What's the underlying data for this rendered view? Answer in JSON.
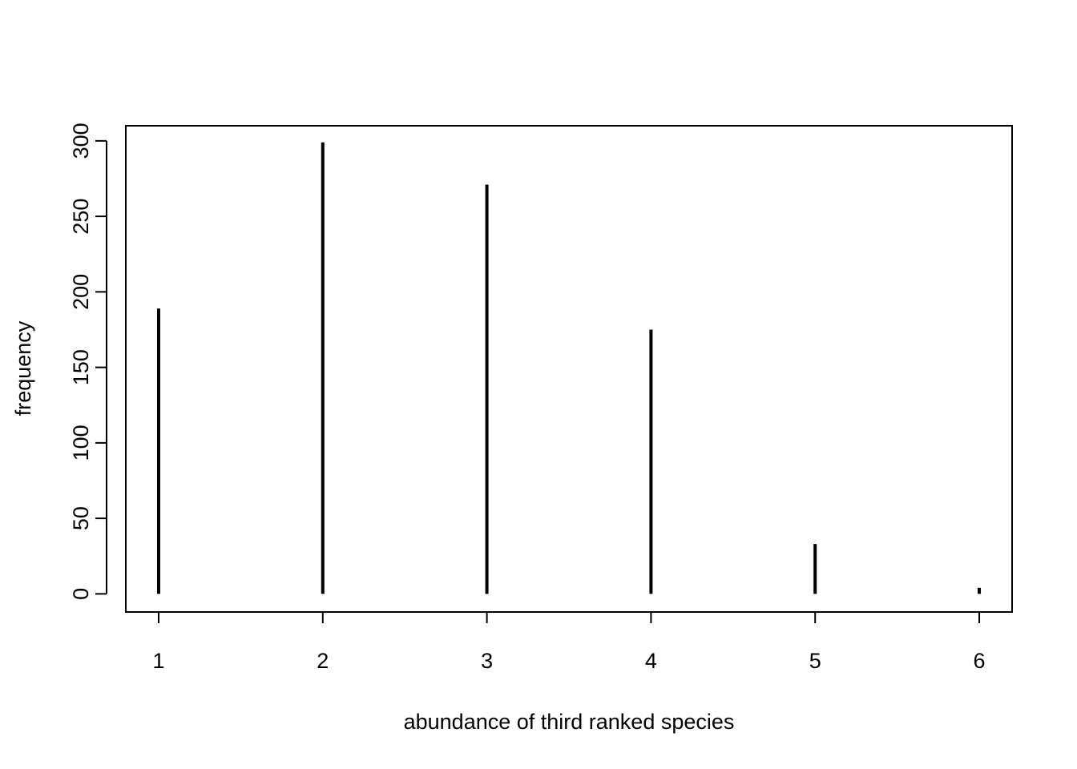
{
  "chart_data": {
    "type": "bar",
    "style": "histogram-lines",
    "x": [
      1,
      2,
      3,
      4,
      5,
      6
    ],
    "values": [
      189,
      299,
      271,
      175,
      33,
      4
    ],
    "xlabel": "abundance of third ranked species",
    "ylabel": "frequency",
    "xlim": [
      0.8,
      6.2
    ],
    "ylim": [
      -12,
      310
    ],
    "x_ticks": [
      1,
      2,
      3,
      4,
      5,
      6
    ],
    "y_ticks": [
      0,
      50,
      100,
      150,
      200,
      250,
      300
    ],
    "x_tick_labels": [
      "1",
      "2",
      "3",
      "4",
      "5",
      "6"
    ],
    "y_tick_labels": [
      "0",
      "50",
      "100",
      "150",
      "200",
      "250",
      "300"
    ],
    "grid": false,
    "legend": "none",
    "line_color": "#000000"
  }
}
